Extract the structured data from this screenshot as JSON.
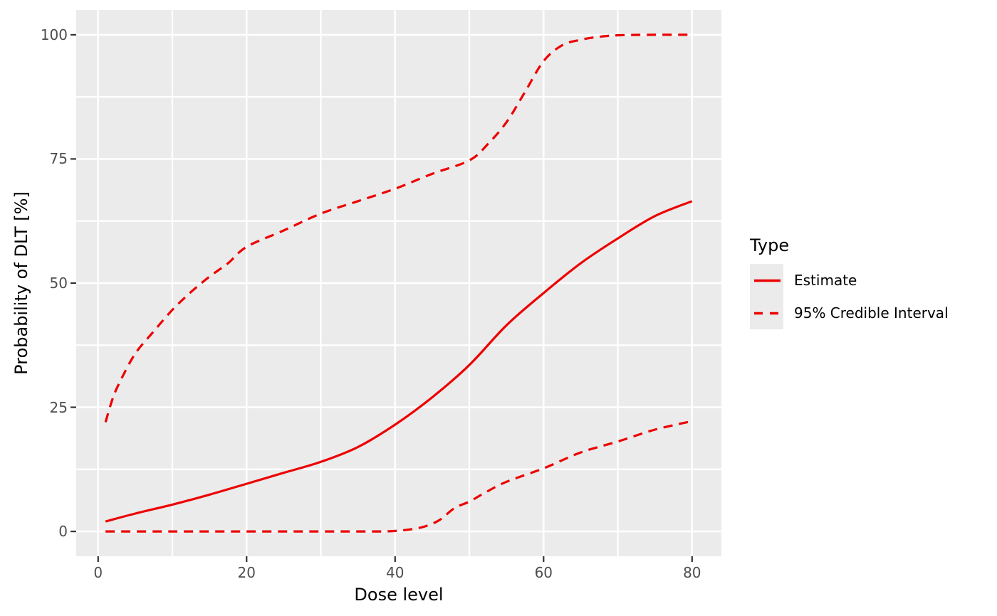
{
  "colors": {
    "series_red": "#ED0000",
    "panel_background": "#EBEBEB",
    "gridline": "#FFFFFF",
    "tick_mark": "#333333",
    "tick_label": "#4D4D4D",
    "axis_title": "#000000",
    "legend_key_background": "#EBEBEB"
  },
  "axes": {
    "x": {
      "title": "Dose level"
    },
    "y": {
      "title": "Probability of DLT [%]"
    }
  },
  "legend": {
    "title": "Type",
    "items": [
      {
        "label": "Estimate",
        "linetype": "solid",
        "color": "#ED0000"
      },
      {
        "label": "95% Credible Interval",
        "linetype": "dashed",
        "color": "#ED0000"
      }
    ]
  },
  "chart_data": {
    "type": "line",
    "title": "",
    "xlabel": "Dose level",
    "ylabel": "Probability of DLT [%]",
    "xlim": [
      -2.95,
      83.95
    ],
    "ylim": [
      -5,
      105
    ],
    "x_ticks": [
      0,
      20,
      40,
      60,
      80
    ],
    "y_ticks": [
      0,
      25,
      50,
      75,
      100
    ],
    "x_minor_gridlines": [
      10,
      30,
      50,
      70
    ],
    "y_minor_gridlines": [
      12.5,
      37.5,
      62.5,
      87.5
    ],
    "grid": "white major and minor gridlines on gray panel",
    "legend_position": "right",
    "series": [
      {
        "name": "Estimate",
        "linetype": "solid",
        "color": "#ED0000",
        "points": [
          [
            1,
            2
          ],
          [
            5,
            3.6
          ],
          [
            10,
            5.4
          ],
          [
            15,
            7.4
          ],
          [
            20,
            9.6
          ],
          [
            25,
            11.8
          ],
          [
            30,
            14
          ],
          [
            35,
            17
          ],
          [
            40,
            21.5
          ],
          [
            45,
            27
          ],
          [
            50,
            33.5
          ],
          [
            55,
            41.5
          ],
          [
            60,
            48
          ],
          [
            65,
            54
          ],
          [
            70,
            59
          ],
          [
            75,
            63.5
          ],
          [
            80,
            66.5
          ]
        ]
      },
      {
        "name": "95% Credible Interval (upper)",
        "linetype": "dashed",
        "color": "#ED0000",
        "points": [
          [
            1,
            22
          ],
          [
            2,
            26.9
          ],
          [
            3,
            30.3
          ],
          [
            5,
            35.8
          ],
          [
            7.5,
            40.3
          ],
          [
            10,
            44.6
          ],
          [
            12.5,
            48.2
          ],
          [
            15,
            51.3
          ],
          [
            17.5,
            54
          ],
          [
            20,
            57.3
          ],
          [
            25,
            60.6
          ],
          [
            30,
            64
          ],
          [
            35,
            66.5
          ],
          [
            40,
            69
          ],
          [
            45,
            72
          ],
          [
            50,
            74.7
          ],
          [
            52.5,
            78
          ],
          [
            55,
            82.4
          ],
          [
            57.5,
            88.5
          ],
          [
            60,
            94.7
          ],
          [
            62.5,
            97.9
          ],
          [
            65,
            99
          ],
          [
            67.5,
            99.6
          ],
          [
            70,
            99.9
          ],
          [
            75,
            100
          ],
          [
            80,
            100
          ]
        ]
      },
      {
        "name": "95% Credible Interval (lower)",
        "linetype": "dashed",
        "color": "#ED0000",
        "points": [
          [
            1,
            0
          ],
          [
            10,
            0
          ],
          [
            20,
            0
          ],
          [
            30,
            0
          ],
          [
            35,
            0
          ],
          [
            38,
            0
          ],
          [
            40,
            0.1
          ],
          [
            42,
            0.4
          ],
          [
            44,
            1
          ],
          [
            46,
            2.3
          ],
          [
            48,
            4.7
          ],
          [
            50,
            6
          ],
          [
            52,
            7.7
          ],
          [
            55,
            10
          ],
          [
            60,
            12.7
          ],
          [
            65,
            15.9
          ],
          [
            70,
            18.1
          ],
          [
            75,
            20.5
          ],
          [
            80,
            22.2
          ]
        ]
      }
    ]
  }
}
